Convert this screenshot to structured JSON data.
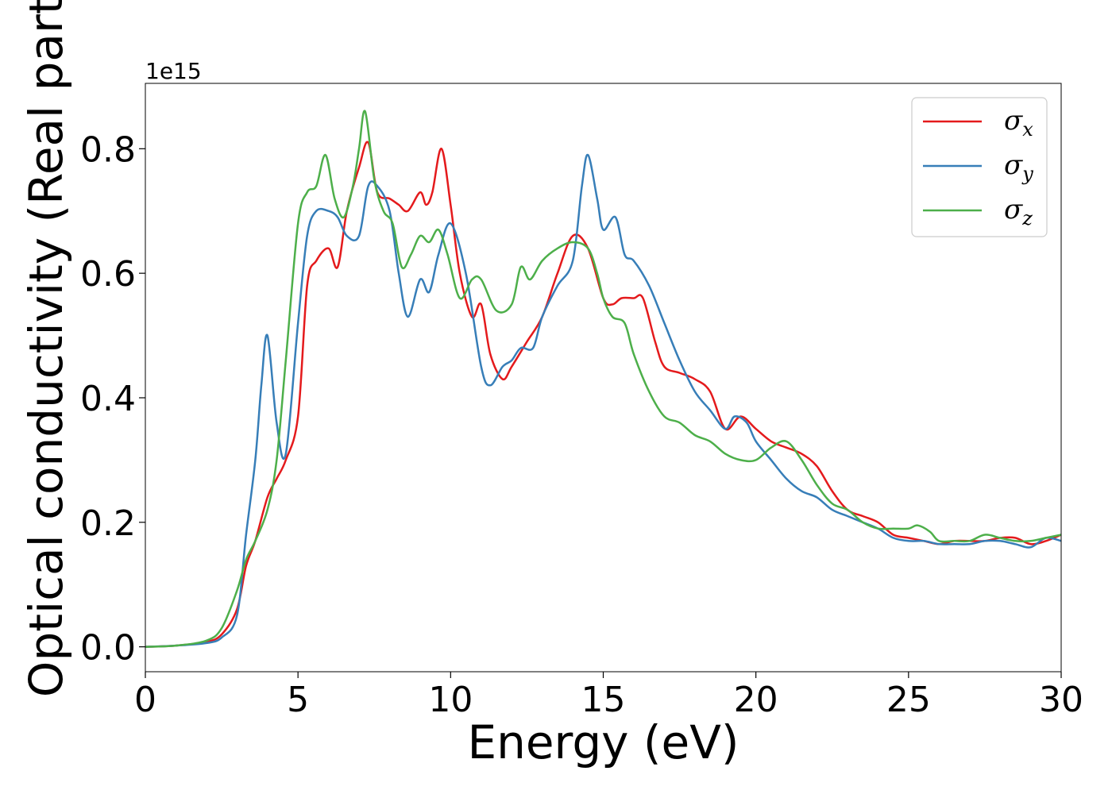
{
  "chart_data": {
    "type": "line",
    "title": "",
    "xlabel": "Energy (eV)",
    "ylabel": "Optical conductivity (Real part)",
    "y_offset_text": "1e15",
    "y_scale": 1000000000000000.0,
    "xlim": [
      0,
      30
    ],
    "ylim": [
      -0.04,
      0.905
    ],
    "xticks": [
      0,
      5,
      10,
      15,
      20,
      25,
      30
    ],
    "xtick_labels": [
      "0",
      "5",
      "10",
      "15",
      "20",
      "25",
      "30"
    ],
    "yticks": [
      0.0,
      0.2,
      0.4,
      0.6,
      0.8
    ],
    "ytick_labels": [
      "0.0",
      "0.2",
      "0.4",
      "0.6",
      "0.8"
    ],
    "grid": false,
    "legend_position": "top-right",
    "series": [
      {
        "name": "σx",
        "legend_symbol": "σ",
        "legend_subscript": "x",
        "color": "#e41a1c",
        "x": [
          0,
          1,
          2,
          2.5,
          3,
          3.3,
          3.6,
          4,
          4.3,
          4.6,
          5,
          5.3,
          5.6,
          6,
          6.3,
          6.6,
          7,
          7.3,
          7.6,
          8,
          8.3,
          8.6,
          9,
          9.2,
          9.4,
          9.7,
          10,
          10.3,
          10.7,
          11,
          11.3,
          11.7,
          12,
          12.5,
          13,
          13.5,
          14,
          14.5,
          15,
          15.3,
          15.6,
          16,
          16.3,
          16.7,
          17,
          17.5,
          18,
          18.5,
          19,
          19.5,
          20,
          20.5,
          21,
          21.5,
          22,
          22.5,
          23,
          23.5,
          24,
          24.5,
          25,
          25.5,
          26,
          26.5,
          27,
          27.5,
          28,
          28.5,
          29,
          29.5,
          30
        ],
        "y": [
          0.0,
          0.002,
          0.008,
          0.02,
          0.06,
          0.13,
          0.17,
          0.24,
          0.27,
          0.3,
          0.37,
          0.58,
          0.62,
          0.64,
          0.61,
          0.7,
          0.77,
          0.81,
          0.73,
          0.72,
          0.71,
          0.7,
          0.73,
          0.71,
          0.73,
          0.8,
          0.71,
          0.6,
          0.53,
          0.55,
          0.47,
          0.43,
          0.45,
          0.49,
          0.53,
          0.6,
          0.66,
          0.64,
          0.56,
          0.55,
          0.56,
          0.56,
          0.56,
          0.49,
          0.45,
          0.44,
          0.43,
          0.41,
          0.35,
          0.37,
          0.35,
          0.33,
          0.32,
          0.31,
          0.29,
          0.25,
          0.22,
          0.21,
          0.2,
          0.18,
          0.175,
          0.17,
          0.165,
          0.17,
          0.17,
          0.17,
          0.175,
          0.175,
          0.165,
          0.17,
          0.18
        ]
      },
      {
        "name": "σy",
        "legend_symbol": "σ",
        "legend_subscript": "y",
        "color": "#377eb8",
        "x": [
          0,
          1,
          2,
          2.5,
          3,
          3.3,
          3.6,
          3.8,
          4,
          4.3,
          4.6,
          5,
          5.3,
          5.6,
          6,
          6.3,
          6.6,
          7,
          7.3,
          7.6,
          8,
          8.3,
          8.6,
          9,
          9.3,
          9.6,
          10,
          10.5,
          11,
          11.3,
          11.7,
          12,
          12.3,
          12.7,
          13,
          13.5,
          14,
          14.3,
          14.5,
          14.8,
          15,
          15.4,
          15.7,
          16,
          16.5,
          17,
          17.5,
          18,
          18.5,
          19,
          19.3,
          19.7,
          20,
          20.5,
          21,
          21.5,
          22,
          22.5,
          23,
          23.5,
          24,
          24.5,
          25,
          25.5,
          26,
          26.5,
          27,
          27.5,
          28,
          28.5,
          29,
          29.5,
          30
        ],
        "y": [
          0.0,
          0.002,
          0.006,
          0.015,
          0.05,
          0.18,
          0.3,
          0.42,
          0.5,
          0.36,
          0.31,
          0.52,
          0.66,
          0.7,
          0.7,
          0.69,
          0.66,
          0.66,
          0.74,
          0.74,
          0.7,
          0.6,
          0.53,
          0.59,
          0.57,
          0.63,
          0.68,
          0.6,
          0.45,
          0.42,
          0.45,
          0.46,
          0.48,
          0.48,
          0.53,
          0.58,
          0.62,
          0.74,
          0.79,
          0.72,
          0.67,
          0.69,
          0.63,
          0.62,
          0.58,
          0.52,
          0.46,
          0.41,
          0.38,
          0.35,
          0.37,
          0.36,
          0.33,
          0.3,
          0.27,
          0.25,
          0.24,
          0.22,
          0.21,
          0.2,
          0.19,
          0.175,
          0.17,
          0.17,
          0.165,
          0.165,
          0.165,
          0.17,
          0.17,
          0.165,
          0.16,
          0.175,
          0.17
        ]
      },
      {
        "name": "σz",
        "legend_symbol": "σ",
        "legend_subscript": "z",
        "color": "#4daf4a",
        "x": [
          0,
          1,
          2,
          2.5,
          3,
          3.3,
          3.6,
          4,
          4.3,
          4.6,
          5,
          5.3,
          5.6,
          5.9,
          6.2,
          6.5,
          6.8,
          7,
          7.2,
          7.5,
          7.8,
          8.1,
          8.4,
          8.7,
          9,
          9.3,
          9.6,
          9.9,
          10.3,
          10.7,
          11,
          11.5,
          12,
          12.3,
          12.6,
          13,
          13.5,
          14,
          14.5,
          14.8,
          15,
          15.3,
          15.7,
          16,
          16.5,
          17,
          17.5,
          18,
          18.5,
          19,
          19.5,
          20,
          20.5,
          21,
          21.5,
          22,
          22.5,
          23,
          23.5,
          24,
          24.5,
          25,
          25.3,
          25.7,
          26,
          26.5,
          27,
          27.5,
          28,
          28.5,
          29,
          29.5,
          30
        ],
        "y": [
          0.0,
          0.002,
          0.01,
          0.03,
          0.09,
          0.14,
          0.17,
          0.22,
          0.3,
          0.46,
          0.68,
          0.73,
          0.74,
          0.79,
          0.72,
          0.69,
          0.74,
          0.8,
          0.86,
          0.75,
          0.7,
          0.68,
          0.61,
          0.63,
          0.66,
          0.65,
          0.67,
          0.63,
          0.56,
          0.59,
          0.59,
          0.54,
          0.55,
          0.61,
          0.59,
          0.62,
          0.64,
          0.65,
          0.64,
          0.6,
          0.56,
          0.53,
          0.52,
          0.47,
          0.41,
          0.37,
          0.36,
          0.34,
          0.33,
          0.31,
          0.3,
          0.3,
          0.32,
          0.33,
          0.3,
          0.26,
          0.23,
          0.22,
          0.2,
          0.19,
          0.19,
          0.19,
          0.195,
          0.185,
          0.17,
          0.17,
          0.17,
          0.18,
          0.175,
          0.17,
          0.17,
          0.175,
          0.18
        ]
      }
    ]
  }
}
